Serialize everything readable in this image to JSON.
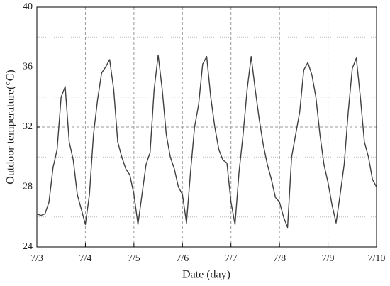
{
  "chart_data": {
    "type": "line",
    "x_label": "Date (day)",
    "y_label": "Outdoor temperature(°C)",
    "x": [
      0,
      2,
      4,
      6,
      8,
      10,
      12,
      14,
      16,
      18,
      20,
      22,
      24,
      26,
      28,
      30,
      32,
      34,
      36,
      38,
      40,
      42,
      44,
      46,
      48,
      50,
      52,
      54,
      56,
      58,
      60,
      62,
      64,
      66,
      68,
      70,
      72,
      74,
      76,
      78,
      80,
      82,
      84,
      86,
      88,
      90,
      92,
      94,
      96,
      98,
      100,
      102,
      104,
      106,
      108,
      110,
      112,
      114,
      116,
      118,
      120,
      122,
      124,
      126,
      128,
      130,
      132,
      134,
      136,
      138,
      140,
      142,
      144,
      146,
      148,
      150,
      152,
      154,
      156,
      158,
      160,
      162,
      164,
      166,
      168
    ],
    "values": [
      26.2,
      26.1,
      26.2,
      27.0,
      29.3,
      30.5,
      34.0,
      34.7,
      31.0,
      29.8,
      27.5,
      26.5,
      25.5,
      27.5,
      31.5,
      33.8,
      35.6,
      36.0,
      36.5,
      34.5,
      31.0,
      30.0,
      29.2,
      28.8,
      27.5,
      25.5,
      27.5,
      29.5,
      30.3,
      34.5,
      36.8,
      34.5,
      31.5,
      30.0,
      29.2,
      28.0,
      27.5,
      25.6,
      29.0,
      32.0,
      33.5,
      36.2,
      36.7,
      34.0,
      32.0,
      30.5,
      29.8,
      29.6,
      27.0,
      25.5,
      29.0,
      31.5,
      34.5,
      36.7,
      34.5,
      32.5,
      30.8,
      29.5,
      28.5,
      27.3,
      27.0,
      26.0,
      25.3,
      30.0,
      31.5,
      33.0,
      35.8,
      36.3,
      35.5,
      34.0,
      31.5,
      29.5,
      28.3,
      26.8,
      25.6,
      27.5,
      29.5,
      33.0,
      35.9,
      36.6,
      34.0,
      31.0,
      30.0,
      28.5,
      28.0
    ],
    "color": "#404040",
    "xlim": [
      0,
      168
    ],
    "xticks": [
      {
        "value": 0,
        "label": "7/3"
      },
      {
        "value": 24,
        "label": "7/4"
      },
      {
        "value": 48,
        "label": "7/5"
      },
      {
        "value": 72,
        "label": "7/6"
      },
      {
        "value": 96,
        "label": "7/7"
      },
      {
        "value": 120,
        "label": "7/8"
      },
      {
        "value": 144,
        "label": "7/9"
      },
      {
        "value": 168,
        "label": "7/10"
      }
    ],
    "ylim": [
      24,
      40
    ],
    "yticks": [
      24,
      28,
      32,
      36,
      40
    ],
    "minor_yticks": [
      26,
      30,
      34,
      38
    ],
    "grid": true
  }
}
